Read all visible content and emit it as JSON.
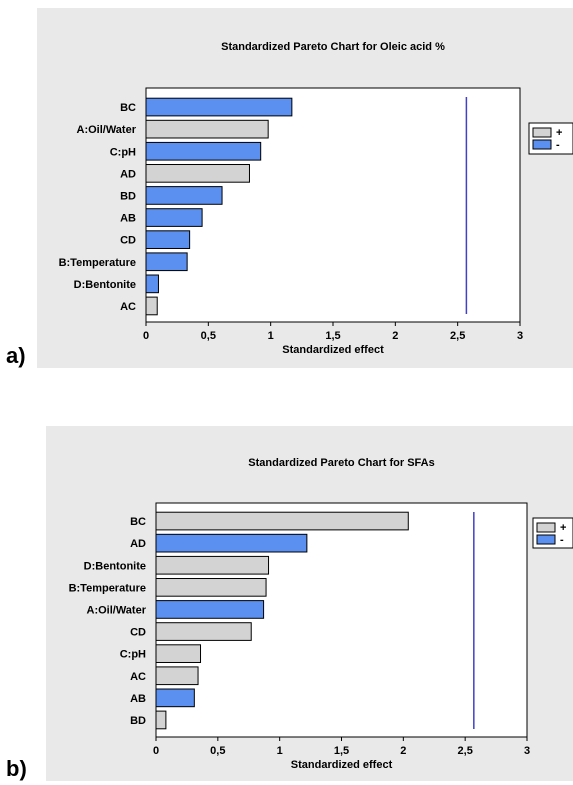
{
  "chart_data": [
    {
      "type": "bar",
      "orientation": "horizontal",
      "panel_label": "a)",
      "title": "Standardized Pareto Chart for Oleic acid %",
      "xlabel": "Standardized effect",
      "ylabel": "",
      "xlim": [
        0,
        3
      ],
      "xticks": [
        "0",
        "0,5",
        "1",
        "1,5",
        "2",
        "2,5",
        "3"
      ],
      "reference_line": 2.57,
      "legend": {
        "position": "right",
        "entries": [
          {
            "label": "+",
            "color": "#d3d3d3"
          },
          {
            "label": "-",
            "color": "#5b8ff0"
          }
        ]
      },
      "categories": [
        "BC",
        "A:Oil/Water",
        "C:pH",
        "AD",
        "BD",
        "AB",
        "CD",
        "B:Temperature",
        "D:Bentonite",
        "AC"
      ],
      "values": [
        1.17,
        0.98,
        0.92,
        0.83,
        0.61,
        0.45,
        0.35,
        0.33,
        0.1,
        0.09
      ],
      "signs": [
        "-",
        "+",
        "-",
        "+",
        "-",
        "-",
        "-",
        "-",
        "-",
        "+"
      ]
    },
    {
      "type": "bar",
      "orientation": "horizontal",
      "panel_label": "b)",
      "title": "Standardized Pareto Chart for SFAs",
      "xlabel": "Standardized effect",
      "ylabel": "",
      "xlim": [
        0,
        3
      ],
      "xticks": [
        "0",
        "0,5",
        "1",
        "1,5",
        "2",
        "2,5",
        "3"
      ],
      "reference_line": 2.57,
      "legend": {
        "position": "right",
        "entries": [
          {
            "label": "+",
            "color": "#d3d3d3"
          },
          {
            "label": "-",
            "color": "#5b8ff0"
          }
        ]
      },
      "categories": [
        "BC",
        "AD",
        "D:Bentonite",
        "B:Temperature",
        "A:Oil/Water",
        "CD",
        "C:pH",
        "AC",
        "AB",
        "BD"
      ],
      "values": [
        2.04,
        1.22,
        0.91,
        0.89,
        0.87,
        0.77,
        0.36,
        0.34,
        0.31,
        0.08
      ],
      "signs": [
        "+",
        "-",
        "+",
        "+",
        "-",
        "+",
        "+",
        "+",
        "-",
        "+"
      ]
    }
  ],
  "colors": {
    "background": "#e9e9e9",
    "positive": "#d3d3d3",
    "negative": "#5b8ff0",
    "reference_line": "#4040c8"
  }
}
